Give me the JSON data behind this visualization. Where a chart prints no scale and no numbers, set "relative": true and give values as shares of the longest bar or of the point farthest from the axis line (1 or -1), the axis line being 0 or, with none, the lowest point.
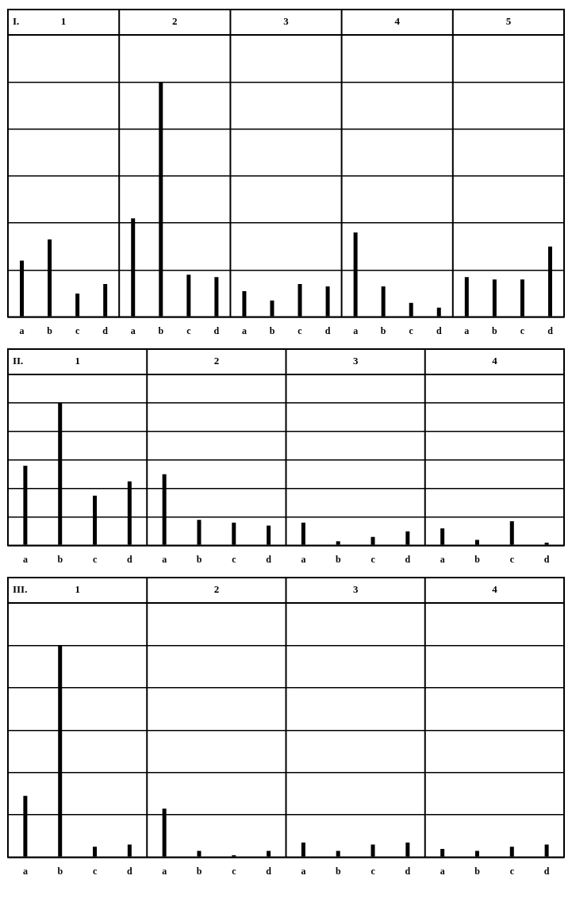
{
  "chart_data": [
    {
      "type": "bar",
      "title": "I.",
      "annotations": [
        "1",
        "2",
        "3",
        "4",
        "5"
      ],
      "relative": true,
      "grid": true,
      "color": "#000000",
      "categories": [
        "a",
        "b",
        "c",
        "d",
        "a",
        "b",
        "c",
        "d",
        "a",
        "b",
        "c",
        "d",
        "a",
        "b",
        "c",
        "d",
        "a",
        "b",
        "c",
        "d"
      ],
      "values": [
        0.24,
        0.33,
        0.1,
        0.14,
        0.42,
        1,
        0.18,
        0.17,
        0.11,
        0.07,
        0.14,
        0.13,
        0.36,
        0.13,
        0.06,
        0.04,
        0.17,
        0.16,
        0.16,
        0.3
      ]
    },
    {
      "type": "bar",
      "title": "II.",
      "annotations": [
        "1",
        "2",
        "3",
        "4"
      ],
      "relative": true,
      "grid": true,
      "color": "#000000",
      "categories": [
        "a",
        "b",
        "c",
        "d",
        "a",
        "b",
        "c",
        "d",
        "a",
        "b",
        "c",
        "d",
        "a",
        "b",
        "c",
        "d"
      ],
      "values": [
        0.56,
        1,
        0.35,
        0.45,
        0.5,
        0.18,
        0.16,
        0.14,
        0.16,
        0.03,
        0.06,
        0.1,
        0.12,
        0.04,
        0.17,
        0.02
      ]
    },
    {
      "type": "bar",
      "title": "III.",
      "annotations": [
        "1",
        "2",
        "3",
        "4"
      ],
      "relative": true,
      "grid": true,
      "color": "#000000",
      "categories": [
        "a",
        "b",
        "c",
        "d",
        "a",
        "b",
        "c",
        "d",
        "a",
        "b",
        "c",
        "d",
        "a",
        "b",
        "c",
        "d"
      ],
      "values": [
        0.29,
        1,
        0.05,
        0.06,
        0.23,
        0.03,
        0.01,
        0.03,
        0.07,
        0.03,
        0.06,
        0.07,
        0.04,
        0.03,
        0.05,
        0.06
      ]
    }
  ]
}
